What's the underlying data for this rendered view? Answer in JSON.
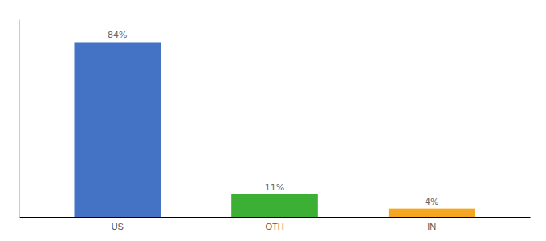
{
  "chart_data": {
    "type": "bar",
    "categories": [
      "US",
      "OTH",
      "IN"
    ],
    "values": [
      84,
      11,
      4
    ],
    "value_labels": [
      "84%",
      "11%",
      "4%"
    ],
    "colors": [
      "#4472c4",
      "#3cb034",
      "#f5a623"
    ],
    "ylim": [
      0,
      95
    ],
    "data_labels": true,
    "grid": false,
    "tick_labels": "x"
  }
}
